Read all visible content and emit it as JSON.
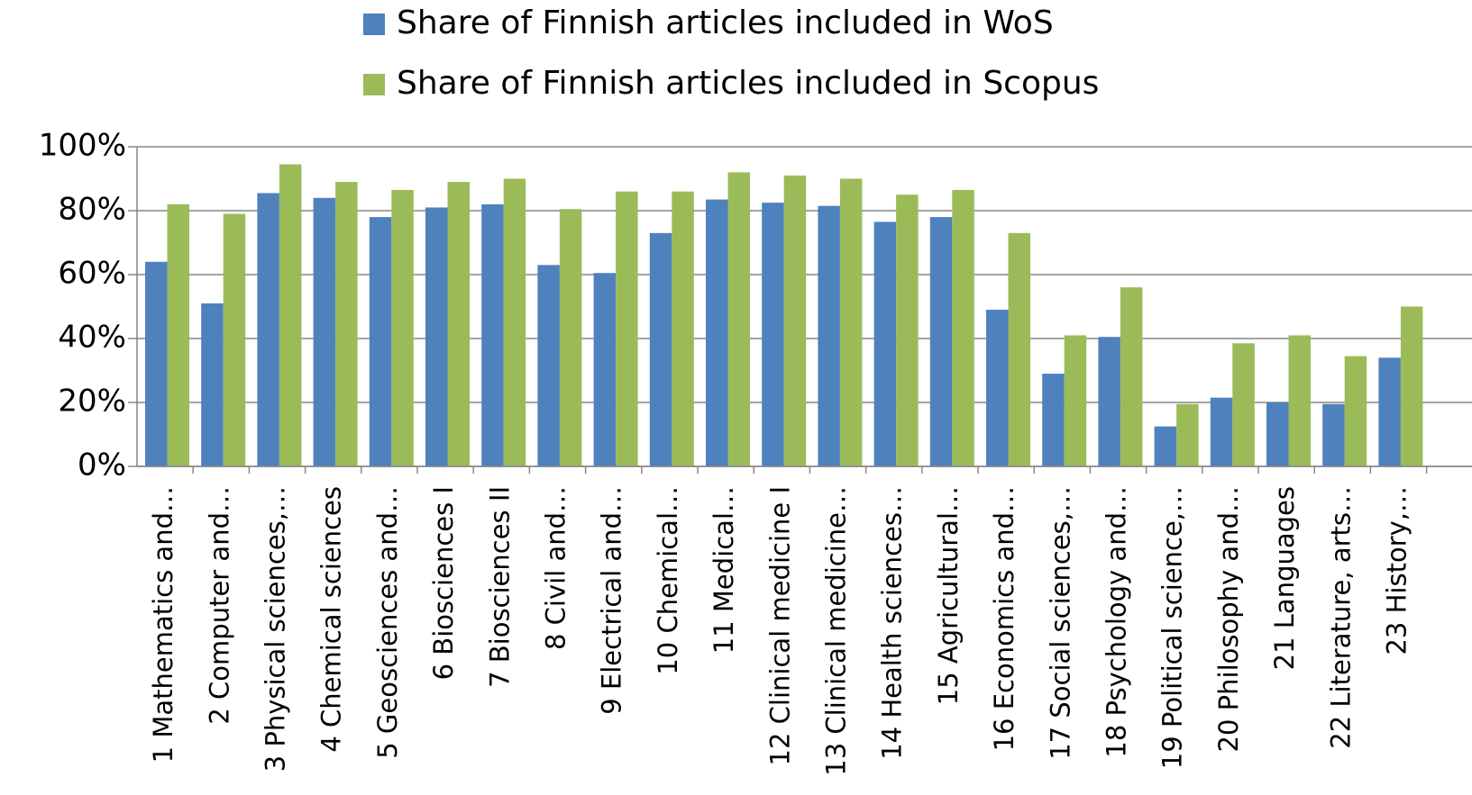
{
  "chart_data": {
    "type": "bar",
    "categories": [
      "1 Mathematics and…",
      "2 Computer and…",
      "3 Physical sciences,…",
      "4 Chemical sciences",
      "5 Geosciences and…",
      "6 Biosciences I",
      "7 Biosciences II",
      "8 Civil and…",
      "9 Electrical and…",
      "10 Chemical…",
      "11 Medical…",
      "12 Clinical medicine I",
      "13 Clinical medicine…",
      "14 Health sciences…",
      "15 Agricultural…",
      "16 Economics and…",
      "17 Social sciences,…",
      "18 Psychology and…",
      "19 Political science,…",
      "20 Philosophy and…",
      "21 Languages",
      "22 Literature, arts…",
      "23 History,…"
    ],
    "series": [
      {
        "name": "Share of Finnish articles included in WoS",
        "color": "#4f81bd",
        "values": [
          64,
          51,
          85.5,
          84,
          78,
          81,
          82,
          63,
          60.5,
          73,
          83.5,
          82.5,
          81.5,
          76.5,
          78,
          49,
          29,
          40.5,
          12.5,
          21.5,
          20,
          19.5,
          34
        ]
      },
      {
        "name": "Share of Finnish articles included in Scopus",
        "color": "#9bbb59",
        "values": [
          82,
          79,
          94.5,
          89,
          86.5,
          89,
          90,
          80.5,
          86,
          86,
          92,
          91,
          90,
          85,
          86.5,
          73,
          41,
          56,
          19.5,
          38.5,
          41,
          34.5,
          50
        ]
      }
    ],
    "ylim": [
      0,
      100
    ],
    "yticks": [
      {
        "value": 0,
        "label": "0%"
      },
      {
        "value": 20,
        "label": "20%"
      },
      {
        "value": 40,
        "label": "40%"
      },
      {
        "value": 60,
        "label": "60%"
      },
      {
        "value": 80,
        "label": "80%"
      },
      {
        "value": 100,
        "label": "100%"
      }
    ],
    "grid": true,
    "legend": "top"
  }
}
